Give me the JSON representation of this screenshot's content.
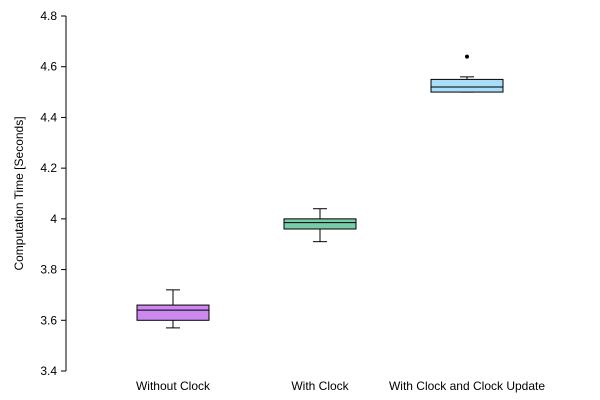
{
  "chart_data": {
    "type": "box",
    "title": "",
    "xlabel": "",
    "ylabel": "Computation Time [Seconds]",
    "ylim": [
      3.4,
      4.8
    ],
    "yticks": [
      3.4,
      3.6,
      3.8,
      4,
      4.2,
      4.4,
      4.6,
      4.8
    ],
    "ytick_labels": [
      "3.4",
      "3.6",
      "3.8",
      "4",
      "4.2",
      "4.4",
      "4.6",
      "4.8"
    ],
    "grid": false,
    "categories": [
      "Without Clock",
      "With Clock",
      "With Clock and Clock Update"
    ],
    "boxes": [
      {
        "category": "Without Clock",
        "whisker_low": 3.57,
        "q1": 3.6,
        "median": 3.64,
        "q3": 3.66,
        "whisker_high": 3.72,
        "outliers": [],
        "color": "#cc88ee"
      },
      {
        "category": "With Clock",
        "whisker_low": 3.91,
        "q1": 3.96,
        "median": 3.985,
        "q3": 4.0,
        "whisker_high": 4.04,
        "outliers": [],
        "color": "#77ccaa"
      },
      {
        "category": "With Clock and Clock Update",
        "whisker_low": 4.5,
        "q1": 4.5,
        "median": 4.52,
        "q3": 4.55,
        "whisker_high": 4.56,
        "outliers": [
          4.64
        ],
        "color": "#aaddf7"
      }
    ]
  }
}
